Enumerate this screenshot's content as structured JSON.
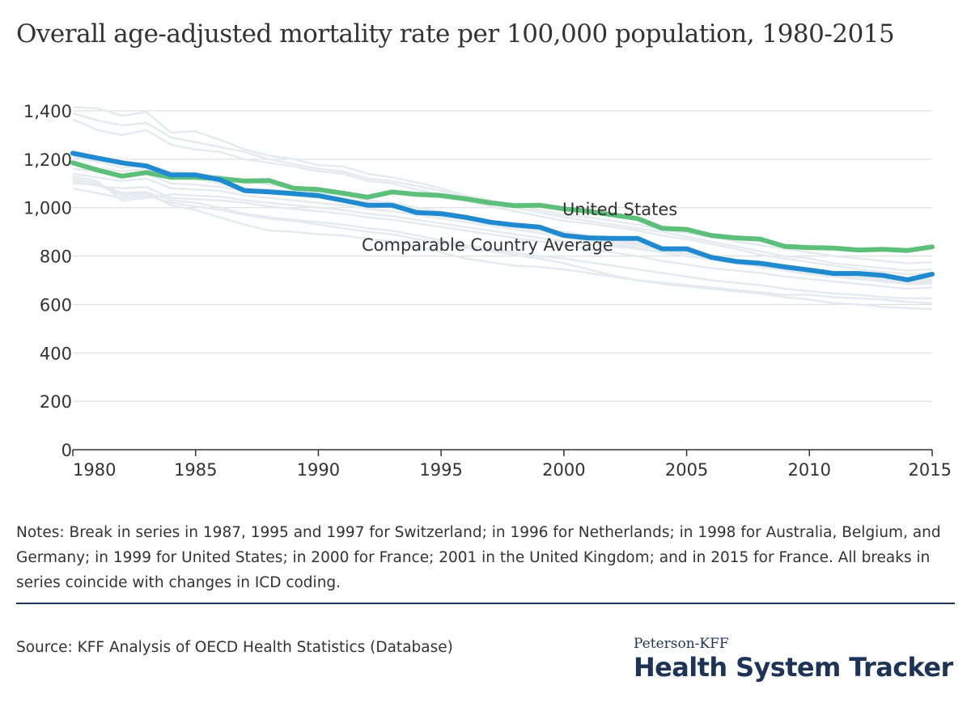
{
  "title": "Overall age-adjusted mortality rate per 100,000 population, 1980-2015",
  "notes": "Notes: Break in series in 1987, 1995 and 1997 for Switzerland; in 1996 for Netherlands; in 1998 for Australia, Belgium, and Germany; in 1999 for United States; in 2000 for France; 2001 in the United Kingdom; and in 2015 for France. All breaks in series coincide with changes in ICD coding.",
  "source": "Source: KFF Analysis of OECD Health Statistics (Database)",
  "brand": {
    "top": "Peterson-KFF",
    "main": "Health System Tracker"
  },
  "colors": {
    "us": "#5dc07a",
    "avg": "#1f8ad0",
    "background_countries": "#e4eaee",
    "grid": "#d9d9d9",
    "brand": "#1e3456"
  },
  "chart_data": {
    "type": "line",
    "x": [
      1980,
      1981,
      1982,
      1983,
      1984,
      1985,
      1986,
      1987,
      1988,
      1989,
      1990,
      1991,
      1992,
      1993,
      1994,
      1995,
      1996,
      1997,
      1998,
      1999,
      2000,
      2001,
      2002,
      2003,
      2004,
      2005,
      2006,
      2007,
      2008,
      2009,
      2010,
      2011,
      2012,
      2013,
      2014,
      2015
    ],
    "xlim": [
      1980,
      2015
    ],
    "ylim": [
      0,
      1400
    ],
    "xticks": [
      "1980",
      "1985",
      "1990",
      "1995",
      "2000",
      "2005",
      "2010",
      "2015"
    ],
    "yticks": [
      "0",
      "200",
      "400",
      "600",
      "800",
      "1,000",
      "1,200",
      "1,400"
    ],
    "grid": true,
    "series": [
      {
        "name": "United States",
        "highlight": true,
        "values": [
          1185,
          1155,
          1130,
          1145,
          1125,
          1125,
          1120,
          1110,
          1112,
          1080,
          1075,
          1060,
          1043,
          1065,
          1055,
          1050,
          1036,
          1020,
          1008,
          1010,
          995,
          985,
          970,
          955,
          915,
          910,
          885,
          875,
          870,
          840,
          835,
          833,
          825,
          828,
          823,
          838
        ]
      },
      {
        "name": "Comparable Country Average",
        "highlight": true,
        "values": [
          1225,
          1205,
          1185,
          1172,
          1135,
          1135,
          1115,
          1070,
          1065,
          1058,
          1050,
          1030,
          1010,
          1010,
          980,
          975,
          960,
          940,
          928,
          920,
          885,
          875,
          873,
          873,
          830,
          830,
          795,
          778,
          770,
          755,
          742,
          728,
          728,
          720,
          702,
          725
        ]
      },
      {
        "values": [
          1415,
          1410,
          1380,
          1395,
          1310,
          1315,
          1280,
          1240,
          1215,
          1200,
          1175,
          1170,
          1140,
          1125,
          1105,
          1080,
          1050,
          1030,
          1010,
          990,
          970,
          960,
          945,
          930,
          910,
          895,
          880,
          860,
          845,
          830,
          815,
          800,
          790,
          780,
          770,
          775
        ]
      },
      {
        "values": [
          1390,
          1360,
          1340,
          1350,
          1290,
          1270,
          1250,
          1230,
          1200,
          1180,
          1160,
          1150,
          1120,
          1110,
          1090,
          1070,
          1040,
          1020,
          1000,
          980,
          960,
          945,
          930,
          915,
          900,
          880,
          860,
          840,
          820,
          800,
          790,
          770,
          760,
          750,
          740,
          745
        ]
      },
      {
        "values": [
          1365,
          1320,
          1300,
          1320,
          1260,
          1240,
          1230,
          1200,
          1185,
          1170,
          1150,
          1140,
          1110,
          1100,
          1075,
          1055,
          1030,
          1005,
          985,
          965,
          945,
          935,
          920,
          905,
          885,
          870,
          850,
          830,
          805,
          790,
          775,
          760,
          745,
          735,
          725,
          730
        ]
      },
      {
        "values": [
          1210,
          1190,
          1165,
          1175,
          1150,
          1140,
          1130,
          1110,
          1095,
          1080,
          1065,
          1050,
          1030,
          1020,
          1000,
          985,
          965,
          945,
          930,
          915,
          900,
          885,
          870,
          855,
          835,
          820,
          800,
          785,
          770,
          755,
          745,
          730,
          720,
          710,
          700,
          705
        ]
      },
      {
        "values": [
          1180,
          1165,
          1150,
          1160,
          1120,
          1120,
          1100,
          1080,
          1075,
          1065,
          1050,
          1035,
          1020,
          1005,
          990,
          970,
          955,
          940,
          925,
          910,
          895,
          880,
          865,
          850,
          830,
          815,
          800,
          780,
          765,
          750,
          735,
          725,
          715,
          705,
          695,
          700
        ]
      },
      {
        "values": [
          1160,
          1150,
          1135,
          1140,
          1100,
          1095,
          1085,
          1070,
          1060,
          1050,
          1040,
          1025,
          1010,
          1000,
          985,
          965,
          950,
          935,
          920,
          905,
          890,
          875,
          860,
          845,
          825,
          810,
          795,
          775,
          760,
          745,
          730,
          720,
          710,
          700,
          690,
          690
        ]
      },
      {
        "values": [
          1140,
          1125,
          1110,
          1120,
          1080,
          1075,
          1070,
          1050,
          1040,
          1030,
          1020,
          1010,
          995,
          985,
          970,
          955,
          940,
          925,
          910,
          895,
          880,
          865,
          850,
          835,
          815,
          800,
          785,
          770,
          755,
          740,
          725,
          715,
          705,
          695,
          685,
          685
        ]
      },
      {
        "values": [
          1130,
          1110,
          1030,
          1040,
          1055,
          1050,
          1045,
          1030,
          1020,
          1010,
          1000,
          990,
          975,
          965,
          950,
          935,
          920,
          905,
          890,
          875,
          860,
          850,
          840,
          830,
          815,
          800,
          790,
          775,
          760,
          745,
          735,
          720,
          710,
          700,
          690,
          695
        ]
      },
      {
        "values": [
          1110,
          1090,
          1080,
          1085,
          1040,
          1035,
          1030,
          1020,
          1005,
          995,
          985,
          975,
          960,
          950,
          935,
          920,
          905,
          890,
          875,
          860,
          845,
          830,
          815,
          800,
          780,
          765,
          750,
          740,
          730,
          715,
          705,
          695,
          685,
          675,
          665,
          670
        ]
      },
      {
        "values": [
          1100,
          1095,
          1050,
          1060,
          1010,
          990,
          960,
          930,
          905,
          900,
          890,
          885,
          870,
          860,
          840,
          815,
          790,
          775,
          760,
          755,
          745,
          730,
          715,
          700,
          690,
          680,
          670,
          660,
          650,
          640,
          640,
          630,
          625,
          620,
          610,
          605
        ]
      },
      {
        "values": [
          1120,
          1100,
          1060,
          1065,
          1030,
          1020,
          1000,
          975,
          960,
          950,
          940,
          930,
          915,
          905,
          885,
          865,
          845,
          830,
          815,
          800,
          790,
          775,
          760,
          745,
          730,
          715,
          700,
          690,
          680,
          665,
          655,
          645,
          640,
          630,
          625,
          625
        ]
      },
      {
        "values": [
          1080,
          1060,
          1040,
          1050,
          1020,
          1005,
          990,
          970,
          955,
          945,
          930,
          915,
          900,
          890,
          870,
          855,
          835,
          820,
          805,
          790,
          770,
          745,
          720,
          700,
          685,
          675,
          665,
          655,
          645,
          630,
          620,
          605,
          600,
          590,
          585,
          580
        ]
      }
    ]
  },
  "labels": {
    "us": "United States",
    "avg": "Comparable Country Average"
  }
}
